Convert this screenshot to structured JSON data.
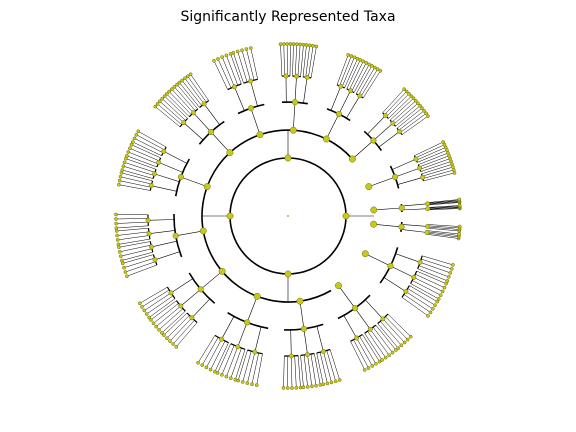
{
  "title": "Significantly Represented Taxa",
  "colors": {
    "node_fill": "#c8c81a",
    "node_stroke": "#6b6b10",
    "edge": "#000000",
    "background": "#ffffff"
  },
  "tree": {
    "type": "radial cladogram",
    "levels": 5,
    "groups": [
      {
        "a1": 0,
        "a2": 8,
        "n": 9
      },
      {
        "a1": 12,
        "a2": 28,
        "n": 12
      },
      {
        "a1": 33,
        "a2": 50,
        "n": 10
      },
      {
        "a1": 55,
        "a2": 72,
        "n": 12
      },
      {
        "a1": 78,
        "a2": 95,
        "n": 12
      },
      {
        "a1": 100,
        "a2": 118,
        "n": 9
      },
      {
        "a1": 122,
        "a2": 143,
        "n": 13
      },
      {
        "a1": 148,
        "a2": 172,
        "n": 16
      },
      {
        "a1": 177,
        "a2": 203,
        "n": 15
      },
      {
        "a1": 208,
        "a2": 232,
        "n": 13
      },
      {
        "a1": 236,
        "a2": 262,
        "n": 13
      },
      {
        "a1": 266,
        "a2": 290,
        "n": 13
      },
      {
        "a1": 294,
        "a2": 318,
        "n": 13
      },
      {
        "a1": 322,
        "a2": 346,
        "n": 13
      },
      {
        "a1": 350,
        "a2": 359,
        "n": 7
      }
    ]
  }
}
